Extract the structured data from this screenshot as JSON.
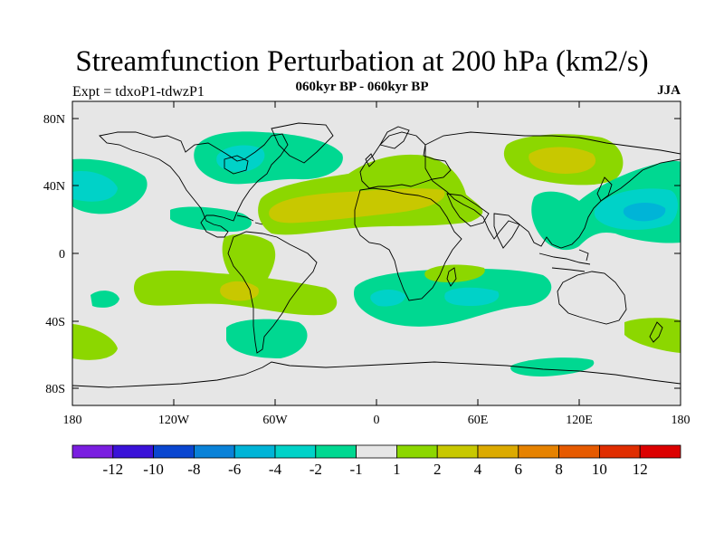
{
  "title": "Streamfunction Perturbation at 200 hPa (km2/s)",
  "subtitle_left": "Expt = tdxoP1-tdwzP1",
  "subtitle_center": "060kyr BP - 060kyr BP",
  "subtitle_right": "JJA",
  "colors": {
    "background_zero": "#e6e6e6",
    "neg_1_2": "#00d891",
    "neg_2_4": "#00d2c8",
    "neg_4_6": "#00b4d7",
    "pos_1_2": "#8cd700",
    "pos_2_4": "#c8c800",
    "land_outline": "#000000"
  },
  "map": {
    "lat_ticks": [
      "80N",
      "40N",
      "0",
      "40S",
      "80S"
    ],
    "lon_ticks": [
      "180",
      "120W",
      "60W",
      "0",
      "60E",
      "120E",
      "180"
    ],
    "lon_range": [
      -180,
      180
    ],
    "lat_range": [
      -90,
      90
    ]
  },
  "colorbar": {
    "colors": [
      "#7a1ee0",
      "#3a12d8",
      "#0a46d0",
      "#0a82d8",
      "#00b4d7",
      "#00d2c8",
      "#00d891",
      "#e6e6e6",
      "#8cd700",
      "#c8c800",
      "#dcaa00",
      "#e68200",
      "#e65a00",
      "#e02d00",
      "#dc0000"
    ],
    "labels": [
      "-12",
      "-10",
      "-8",
      "-6",
      "-4",
      "-2",
      "-1",
      "1",
      "2",
      "4",
      "6",
      "8",
      "10",
      "12"
    ]
  }
}
